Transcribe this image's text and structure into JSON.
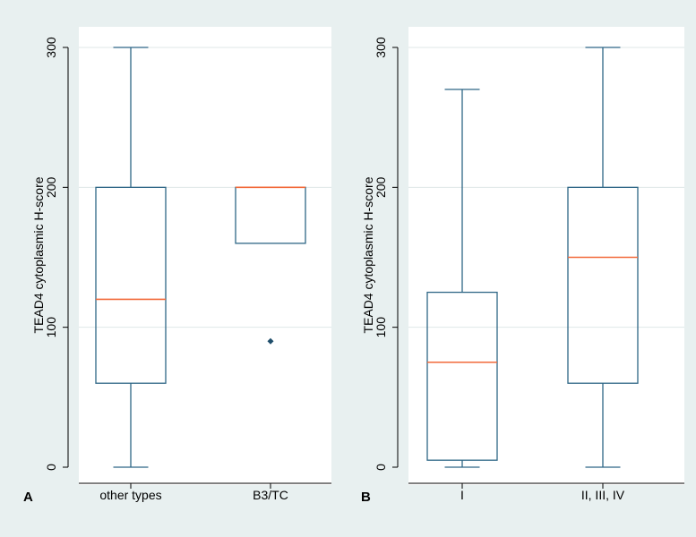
{
  "chart_data": [
    {
      "type": "box",
      "panel_label": "A",
      "title": "",
      "ylabel": "TEAD4 cytoplasmic H-score",
      "xlabel": "",
      "ylim": [
        0,
        300
      ],
      "y_ticks": [
        "0",
        "100",
        "200",
        "300"
      ],
      "categories": [
        "other types",
        "B3/TC"
      ],
      "boxes": [
        {
          "category": "other types",
          "whisker_low": 0,
          "q1": 60,
          "median": 120,
          "q3": 200,
          "whisker_high": 300,
          "outliers": []
        },
        {
          "category": "B3/TC",
          "whisker_low": 160,
          "q1": 160,
          "median": 200,
          "q3": 200,
          "whisker_high": 200,
          "outliers": [
            90
          ]
        }
      ],
      "grid": true
    },
    {
      "type": "box",
      "panel_label": "B",
      "title": "",
      "ylabel": "TEAD4 cytoplasmic H-score",
      "xlabel": "",
      "ylim": [
        0,
        300
      ],
      "y_ticks": [
        "0",
        "100",
        "200",
        "300"
      ],
      "categories": [
        "I",
        "II, III, IV"
      ],
      "boxes": [
        {
          "category": "I",
          "whisker_low": 0,
          "q1": 5,
          "median": 75,
          "q3": 125,
          "whisker_high": 270,
          "outliers": []
        },
        {
          "category": "II, III, IV",
          "whisker_low": 0,
          "q1": 60,
          "median": 150,
          "q3": 200,
          "whisker_high": 300,
          "outliers": []
        }
      ],
      "grid": true
    }
  ],
  "colors": {
    "background": "#e8f0f0",
    "plot_bg": "#ffffff",
    "box_stroke": "#2e6686",
    "median": "#f26a3a",
    "outlier": "#1f4e6b",
    "grid": "#dfe7e7",
    "text": "#000000"
  }
}
